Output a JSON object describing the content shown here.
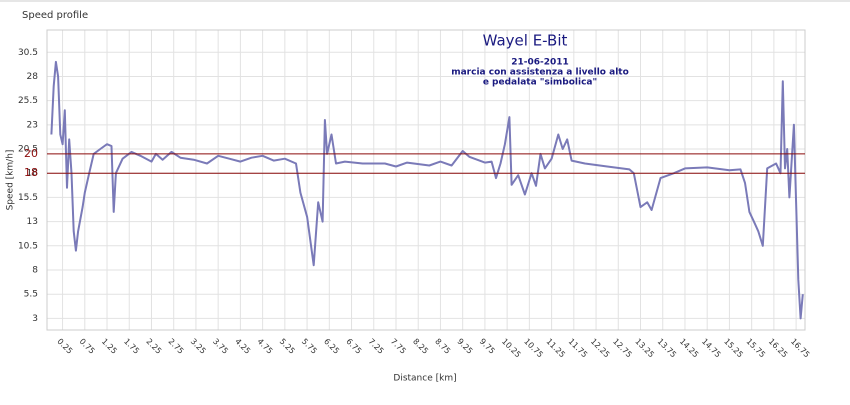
{
  "chart_data": {
    "type": "line",
    "title": "Speed profile",
    "xlabel": "Distance [km]",
    "ylabel": "Speed [km/h]",
    "annotations": [
      "Wayel  E-Bit",
      "21-06-2011",
      "marcia con assistenza a livello alto",
      "e pedalata \"simbolica\""
    ],
    "ref_lines": [
      20,
      18
    ],
    "ref_color": "#8b0a0a",
    "grid": true,
    "xlim": [
      -0.1,
      16.95
    ],
    "ylim": [
      1.8,
      32.8
    ],
    "yticks": [
      3,
      5.5,
      8,
      10.5,
      13,
      15.5,
      18,
      20.5,
      23,
      25.5,
      28,
      30.5
    ],
    "xticks": [
      0.25,
      0.75,
      1.25,
      1.75,
      2.25,
      2.75,
      3.25,
      3.75,
      4.25,
      4.75,
      5.25,
      5.75,
      6.25,
      6.75,
      7.25,
      7.75,
      8.25,
      8.75,
      9.25,
      9.75,
      10.25,
      10.75,
      11.25,
      11.75,
      12.25,
      12.75,
      13.25,
      13.75,
      14.25,
      14.75,
      15.25,
      15.75,
      16.25,
      16.75
    ],
    "series": [
      {
        "color": "#7a7ab8",
        "x": [
          0.0,
          0.05,
          0.1,
          0.15,
          0.2,
          0.25,
          0.3,
          0.35,
          0.4,
          0.45,
          0.5,
          0.55,
          0.6,
          0.7,
          0.75,
          0.85,
          0.95,
          1.1,
          1.25,
          1.35,
          1.4,
          1.45,
          1.6,
          1.8,
          2.0,
          2.25,
          2.35,
          2.5,
          2.7,
          2.9,
          3.2,
          3.5,
          3.75,
          4.0,
          4.25,
          4.5,
          4.75,
          5.0,
          5.25,
          5.5,
          5.6,
          5.75,
          5.9,
          6.0,
          6.1,
          6.15,
          6.2,
          6.3,
          6.4,
          6.6,
          7.0,
          7.5,
          7.75,
          8.0,
          8.5,
          8.75,
          9.0,
          9.25,
          9.4,
          9.75,
          9.9,
          10.0,
          10.1,
          10.2,
          10.3,
          10.35,
          10.5,
          10.65,
          10.8,
          10.9,
          11.0,
          11.1,
          11.25,
          11.4,
          11.5,
          11.6,
          11.7,
          12.0,
          12.5,
          13.0,
          13.1,
          13.25,
          13.4,
          13.5,
          13.7,
          14.0,
          14.25,
          14.75,
          15.25,
          15.5,
          15.6,
          15.7,
          15.8,
          15.9,
          16.0,
          16.1,
          16.3,
          16.4,
          16.45,
          16.5,
          16.55,
          16.6,
          16.7,
          16.75,
          16.8,
          16.85,
          16.9
        ],
        "values": [
          22,
          27,
          29.5,
          28,
          22,
          21,
          24.5,
          16.5,
          21.5,
          18,
          12,
          10,
          12,
          14.5,
          16,
          18,
          20,
          20.5,
          21,
          20.8,
          14,
          18,
          19.5,
          20.2,
          19.8,
          19.2,
          20,
          19.4,
          20.2,
          19.6,
          19.4,
          19,
          19.8,
          19.5,
          19.2,
          19.6,
          19.8,
          19.3,
          19.5,
          19,
          16,
          13.5,
          8.5,
          15,
          13,
          23.5,
          20,
          22,
          19,
          19.2,
          19,
          19,
          18.7,
          19.1,
          18.8,
          19.2,
          18.8,
          20.3,
          19.7,
          19.1,
          19.2,
          17.5,
          19,
          21,
          23.8,
          16.8,
          17.8,
          15.8,
          18,
          16.7,
          20,
          18.5,
          19.5,
          22,
          20.5,
          21.5,
          19.3,
          19,
          18.7,
          18.4,
          18,
          14.5,
          15,
          14.2,
          17.5,
          18,
          18.5,
          18.6,
          18.3,
          18.4,
          17,
          14,
          13,
          12,
          10.5,
          18.5,
          19,
          18,
          27.5,
          18.5,
          20.5,
          15.5,
          23,
          15,
          7,
          3,
          5.5
        ]
      }
    ]
  }
}
